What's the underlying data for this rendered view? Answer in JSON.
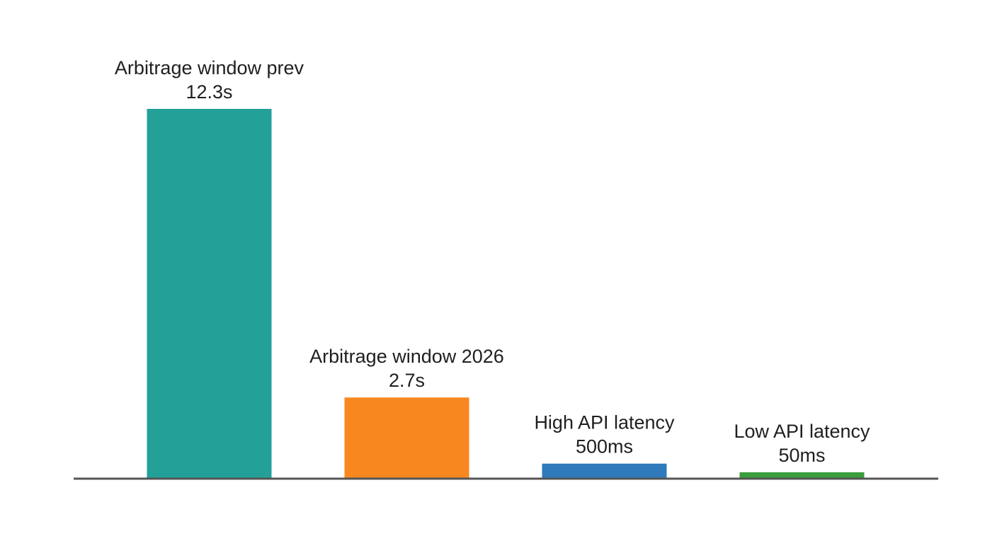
{
  "chart_data": {
    "type": "bar",
    "categories": [
      "Arbitrage window prev",
      "Arbitrage window 2026",
      "High API latency",
      "Low API latency"
    ],
    "value_labels": [
      "12.3s",
      "2.7s",
      "500ms",
      "50ms"
    ],
    "values": [
      12.3,
      2.7,
      0.5,
      0.05
    ],
    "colors": [
      "#23a098",
      "#f88720",
      "#2e7abb",
      "#3a9d3c"
    ],
    "axis_color": "#555555",
    "grid": false,
    "legend": "none"
  }
}
